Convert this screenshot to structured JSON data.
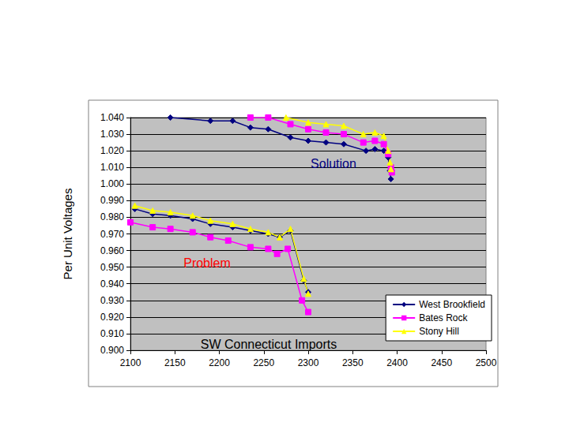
{
  "chart_data": {
    "type": "line",
    "ylabel": "Per Unit Voltages",
    "xlabel": "SW Connecticut Imports",
    "annotations": [
      {
        "text": "Solution",
        "color": "#000080"
      },
      {
        "text": "Problem",
        "color": "#ff0000"
      }
    ],
    "xlim": [
      2100,
      2500
    ],
    "xticks": [
      2100,
      2150,
      2200,
      2250,
      2300,
      2350,
      2400,
      2450,
      2500
    ],
    "ylim": [
      0.9,
      1.04
    ],
    "yticks": [
      {
        "value": 0.9,
        "label": "0.900"
      },
      {
        "value": 0.91,
        "label": "0.910"
      },
      {
        "value": 0.92,
        "label": "0.920"
      },
      {
        "value": 0.93,
        "label": "0.930"
      },
      {
        "value": 0.94,
        "label": "0.940"
      },
      {
        "value": 0.95,
        "label": "0.950"
      },
      {
        "value": 0.96,
        "label": "0.960"
      },
      {
        "value": 0.97,
        "label": "0.970"
      },
      {
        "value": 0.98,
        "label": "0.980"
      },
      {
        "value": 0.99,
        "label": "0.990"
      },
      {
        "value": 1.0,
        "label": "1.000"
      },
      {
        "value": 1.01,
        "label": "1.010"
      },
      {
        "value": 1.02,
        "label": "1.020"
      },
      {
        "value": 1.03,
        "label": "1.030"
      },
      {
        "value": 1.04,
        "label": "1.040"
      }
    ],
    "grid": true,
    "legend": "lower right",
    "series": [
      {
        "name": "West Brookfield",
        "color": "#000080",
        "marker": "diamond",
        "line_style": "solid",
        "x": [
          2105,
          2125,
          2145,
          2170,
          2190,
          2215,
          2235,
          2255,
          2268,
          2280,
          2295,
          2300,
          null,
          2145,
          2190,
          2215,
          2235,
          2255,
          2280,
          2300,
          2320,
          2340,
          2365,
          2375,
          2385,
          2390,
          2392,
          2393
        ],
        "values": [
          0.985,
          0.982,
          0.981,
          0.979,
          0.976,
          0.974,
          0.972,
          0.97,
          0.968,
          0.972,
          0.942,
          0.935,
          null,
          1.04,
          1.038,
          1.038,
          1.034,
          1.033,
          1.028,
          1.026,
          1.025,
          1.024,
          1.02,
          1.021,
          1.02,
          1.016,
          1.008,
          1.003
        ]
      },
      {
        "name": "Bates Rock",
        "color": "#ff00ff",
        "marker": "square",
        "line_style": "solid",
        "x": [
          2100,
          2125,
          2145,
          2170,
          2190,
          2210,
          2235,
          2255,
          2265,
          2277,
          2293,
          2300,
          null,
          2235,
          2255,
          2280,
          2300,
          2320,
          2340,
          2362,
          2375,
          2385,
          2390,
          2393,
          2394
        ],
        "values": [
          0.977,
          0.974,
          0.973,
          0.971,
          0.968,
          0.966,
          0.962,
          0.961,
          0.958,
          0.961,
          0.93,
          0.923,
          null,
          1.04,
          1.04,
          1.036,
          1.033,
          1.031,
          1.03,
          1.025,
          1.026,
          1.024,
          1.018,
          1.01,
          1.007
        ]
      },
      {
        "name": "Stony Hill",
        "color": "#ffff00",
        "marker": "triangle",
        "line_style": "solid",
        "x": [
          2105,
          2125,
          2145,
          2170,
          2190,
          2215,
          2235,
          2255,
          2268,
          2280,
          2295,
          2300,
          null,
          2275,
          2300,
          2320,
          2340,
          2362,
          2375,
          2385,
          2390,
          2392,
          2393
        ],
        "values": [
          0.987,
          0.984,
          0.983,
          0.981,
          0.978,
          0.976,
          0.973,
          0.971,
          0.968,
          0.973,
          0.943,
          0.934,
          null,
          1.04,
          1.037,
          1.036,
          1.035,
          1.03,
          1.031,
          1.029,
          1.02,
          1.013,
          1.009
        ]
      }
    ]
  }
}
